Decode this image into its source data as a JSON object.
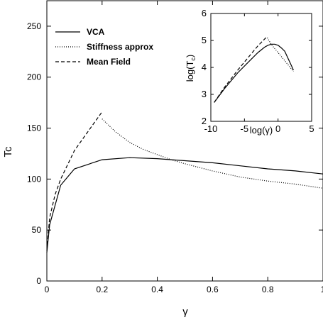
{
  "chart_data": [
    {
      "type": "line",
      "xlabel": "γ",
      "ylabel": "Tc",
      "xlim": [
        0,
        1
      ],
      "ylim": [
        0,
        275
      ],
      "xticks": [
        "0",
        "0.2",
        "0.4",
        "0.6",
        "0.8",
        "1"
      ],
      "yticks": [
        "0",
        "50",
        "100",
        "150",
        "200",
        "250"
      ],
      "grid": false,
      "legend_position": "top-left",
      "series": [
        {
          "name": "VCA",
          "style": "solid",
          "x": [
            0,
            0.01,
            0.05,
            0.1,
            0.2,
            0.3,
            0.4,
            0.5,
            0.6,
            0.7,
            0.8,
            0.9,
            1.0
          ],
          "y": [
            28,
            55,
            94,
            110,
            119,
            121,
            120,
            118,
            116,
            113,
            110,
            108,
            105
          ]
        },
        {
          "name": "Stiffness approx",
          "style": "dotted",
          "x": [
            0.2,
            0.25,
            0.3,
            0.35,
            0.4,
            0.45,
            0.5,
            0.6,
            0.7,
            0.8,
            0.9,
            1.0
          ],
          "y": [
            159,
            146,
            136,
            129,
            124,
            119,
            115,
            108,
            102,
            98,
            95,
            91
          ]
        },
        {
          "name": "Mean Field",
          "style": "dashed",
          "x": [
            0,
            0.01,
            0.03,
            0.05,
            0.1,
            0.15,
            0.2
          ],
          "y": [
            30,
            62,
            85,
            100,
            128,
            147,
            166
          ]
        }
      ]
    },
    {
      "type": "line",
      "inset": true,
      "xlabel": "log(γ)",
      "ylabel": "log(T_c)",
      "xlim": [
        -10,
        5
      ],
      "ylim": [
        2,
        6
      ],
      "xticks": [
        "-10",
        "-5",
        "0",
        "5"
      ],
      "yticks": [
        "2",
        "3",
        "4",
        "5",
        "6"
      ],
      "series": [
        {
          "name": "VCA",
          "style": "solid",
          "x": [
            -9.5,
            -8,
            -6,
            -4,
            -3,
            -2,
            -1.5,
            -1,
            -0.5,
            0,
            0.5,
            1,
            2.3
          ],
          "y": [
            2.7,
            3.2,
            3.8,
            4.3,
            4.55,
            4.75,
            4.82,
            4.86,
            4.86,
            4.82,
            4.72,
            4.6,
            3.9
          ]
        },
        {
          "name": "Stiffness approx",
          "style": "dotted",
          "x": [
            -1.6,
            -1,
            0,
            1,
            2.3
          ],
          "y": [
            5.1,
            4.85,
            4.55,
            4.25,
            3.85
          ]
        },
        {
          "name": "Mean Field",
          "style": "dashed",
          "x": [
            -9.5,
            -8,
            -6,
            -4,
            -3,
            -2,
            -1.6
          ],
          "y": [
            2.7,
            3.25,
            3.9,
            4.5,
            4.8,
            5.05,
            5.15
          ]
        }
      ]
    }
  ]
}
